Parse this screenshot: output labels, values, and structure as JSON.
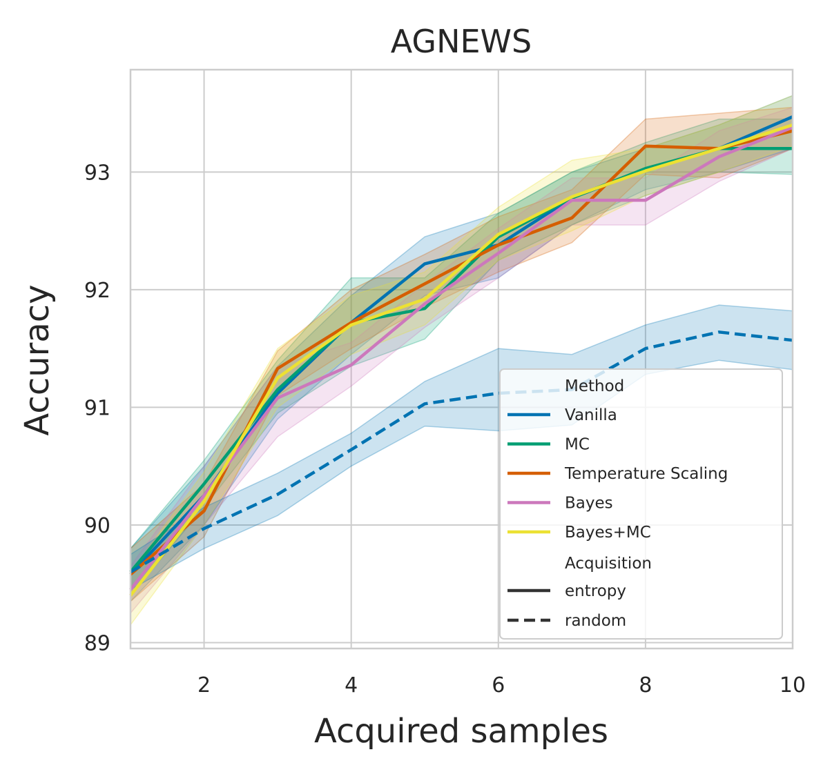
{
  "chart_data": {
    "type": "line",
    "title": "AGNEWS",
    "xlabel": "Acquired samples",
    "ylabel": "Accuracy",
    "xlim": [
      1,
      10
    ],
    "ylim": [
      88.95,
      93.87
    ],
    "xticks": [
      2,
      4,
      6,
      8,
      10
    ],
    "yticks": [
      89,
      90,
      91,
      92,
      93
    ],
    "x": [
      1,
      2,
      3,
      4,
      5,
      6,
      7,
      8,
      9,
      10
    ],
    "grid": true,
    "legend_position": "lower-right",
    "legend": {
      "method_title": "Method",
      "acquisition_title": "Acquisition",
      "acquisition_entries": [
        {
          "label": "entropy",
          "style": "solid"
        },
        {
          "label": "random",
          "style": "dashed"
        }
      ]
    },
    "series": [
      {
        "name": "Vanilla",
        "acquisition": "entropy",
        "color": "#0173b2",
        "dash": "solid",
        "values": [
          89.58,
          90.25,
          91.12,
          91.72,
          92.22,
          92.38,
          92.78,
          93.02,
          93.2,
          93.47
        ],
        "lower": [
          89.35,
          90.0,
          90.9,
          91.45,
          91.95,
          92.1,
          92.55,
          92.85,
          93.0,
          93.2
        ],
        "upper": [
          89.8,
          90.5,
          91.35,
          91.95,
          92.45,
          92.65,
          93.0,
          93.2,
          93.4,
          93.65
        ]
      },
      {
        "name": "MC",
        "acquisition": "entropy",
        "color": "#029e73",
        "dash": "solid",
        "values": [
          89.6,
          90.35,
          91.15,
          91.72,
          91.84,
          92.45,
          92.78,
          93.03,
          93.2,
          93.2
        ],
        "lower": [
          89.4,
          90.15,
          90.95,
          91.35,
          91.58,
          92.25,
          92.55,
          92.8,
          93.0,
          92.98
        ],
        "upper": [
          89.8,
          90.55,
          91.4,
          92.1,
          92.1,
          92.65,
          93.0,
          93.25,
          93.45,
          93.45
        ]
      },
      {
        "name": "Temperature Scaling",
        "acquisition": "entropy",
        "color": "#d55e00",
        "dash": "solid",
        "values": [
          89.58,
          90.12,
          91.33,
          91.72,
          92.05,
          92.38,
          92.61,
          93.22,
          93.2,
          93.35
        ],
        "lower": [
          89.35,
          89.9,
          91.1,
          91.5,
          91.85,
          92.15,
          92.4,
          92.98,
          92.95,
          93.2
        ],
        "upper": [
          89.8,
          90.35,
          91.48,
          92.0,
          92.3,
          92.62,
          92.85,
          93.45,
          93.5,
          93.55
        ]
      },
      {
        "name": "Bayes",
        "acquisition": "entropy",
        "color": "#cc78bc",
        "dash": "solid",
        "values": [
          89.45,
          90.25,
          91.08,
          91.36,
          91.88,
          92.31,
          92.76,
          92.76,
          93.13,
          93.38
        ],
        "lower": [
          89.25,
          90.0,
          90.75,
          91.18,
          91.68,
          92.1,
          92.55,
          92.55,
          92.92,
          93.2
        ],
        "upper": [
          89.65,
          90.5,
          91.35,
          91.55,
          92.05,
          92.52,
          92.95,
          92.95,
          93.35,
          93.55
        ]
      },
      {
        "name": "Bayes+MC",
        "acquisition": "entropy",
        "color": "#ece133",
        "dash": "solid",
        "values": [
          89.4,
          90.2,
          91.25,
          91.7,
          91.92,
          92.47,
          92.79,
          93.01,
          93.2,
          93.4
        ],
        "lower": [
          89.15,
          90.0,
          91.0,
          91.45,
          91.7,
          92.25,
          92.5,
          92.8,
          93.0,
          93.22
        ],
        "upper": [
          89.6,
          90.45,
          91.5,
          91.95,
          92.15,
          92.7,
          93.1,
          93.2,
          93.4,
          93.65
        ]
      },
      {
        "name": "Vanilla",
        "acquisition": "random",
        "color": "#0173b2",
        "dash": "dashed",
        "values": [
          89.6,
          89.97,
          90.26,
          90.64,
          91.03,
          91.12,
          91.15,
          91.5,
          91.64,
          91.57
        ],
        "lower": [
          89.45,
          89.8,
          90.08,
          90.5,
          90.84,
          90.8,
          90.85,
          91.28,
          91.4,
          91.32
        ],
        "upper": [
          89.75,
          90.15,
          90.44,
          90.78,
          91.22,
          91.5,
          91.45,
          91.7,
          91.87,
          91.82
        ]
      }
    ]
  }
}
